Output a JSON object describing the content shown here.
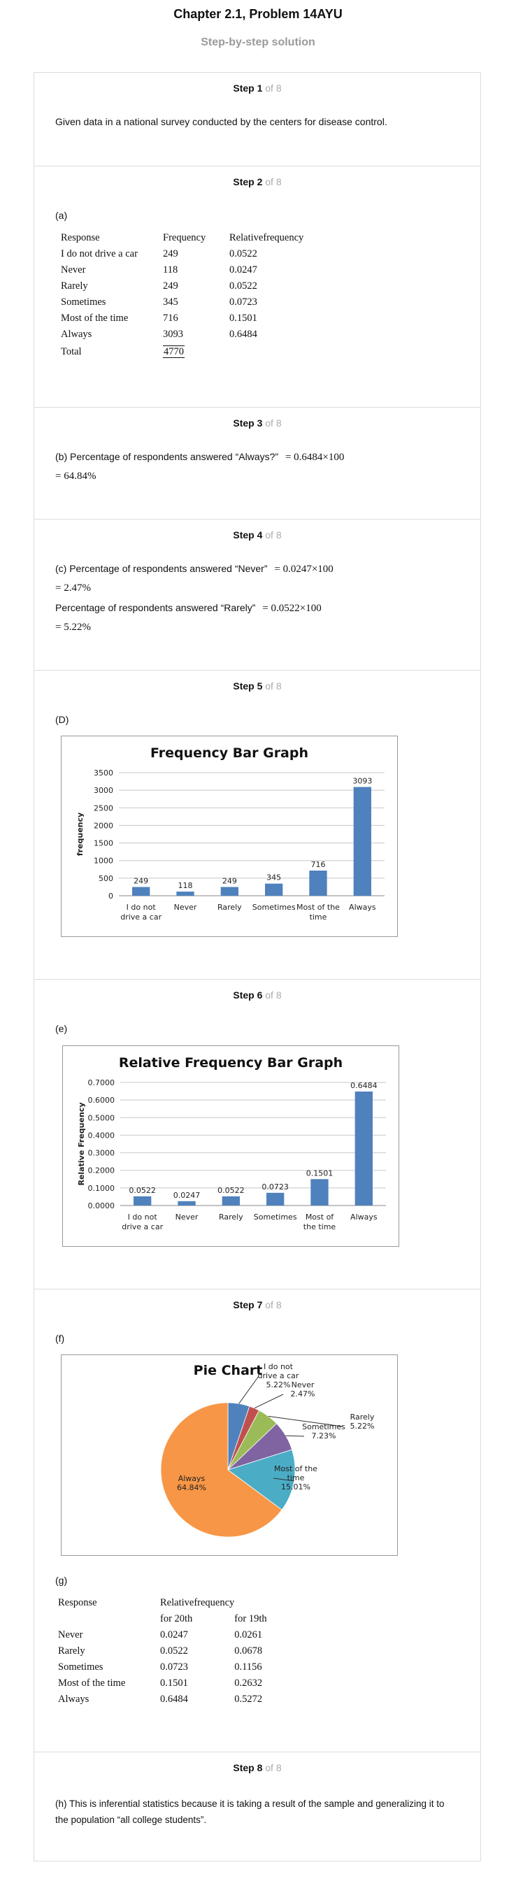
{
  "header": {
    "title": "Chapter 2.1, Problem 14AYU",
    "subtitle": "Step-by-step solution"
  },
  "steps": [
    {
      "num": "Step 1",
      "of": "of 8",
      "text": "Given data in a national survey conducted by the centers for disease control."
    },
    {
      "num": "Step 2",
      "of": "of 8",
      "part": "(a)"
    },
    {
      "num": "Step 3",
      "of": "of 8",
      "text": "(b) Percentage of respondents answered “Always?”",
      "math1": "= 0.6484×100",
      "math2": "= 64.84%"
    },
    {
      "num": "Step 4",
      "of": "of 8",
      "text1": "(c) Percentage of respondents answered “Never”",
      "math1": "= 0.0247×100",
      "math2": "= 2.47%",
      "text2": "Percentage of respondents answered “Rarely”",
      "math3": "= 0.0522×100",
      "math4": "= 5.22%"
    },
    {
      "num": "Step 5",
      "of": "of 8",
      "part": "(D)"
    },
    {
      "num": "Step 6",
      "of": "of 8",
      "part": "(e)"
    },
    {
      "num": "Step 7",
      "of": "of 8",
      "part": "(f)",
      "part2": "(g)"
    },
    {
      "num": "Step 8",
      "of": "of 8",
      "text": "(h) This is inferential statistics because it is taking a result of the sample and generalizing it to the population “all college students”."
    }
  ],
  "freq_table": {
    "headers": [
      "Response",
      "Frequency",
      "Relativefrequency"
    ],
    "rows": [
      [
        "I do not drive a car",
        "249",
        "0.0522"
      ],
      [
        "Never",
        "118",
        "0.0247"
      ],
      [
        "Rarely",
        "249",
        "0.0522"
      ],
      [
        "Sometimes",
        "345",
        "0.0723"
      ],
      [
        "Most of the time",
        "716",
        "0.1501"
      ],
      [
        "Always",
        "3093",
        "0.6484"
      ]
    ],
    "total_label": "Total",
    "total_value": "4770"
  },
  "comp_table": {
    "header1": [
      "Response",
      "Relativefrequency",
      ""
    ],
    "header2": [
      "",
      "for 20th",
      "for 19th"
    ],
    "rows": [
      [
        "Never",
        "0.0247",
        "0.0261"
      ],
      [
        "Rarely",
        "0.0522",
        "0.0678"
      ],
      [
        "Sometimes",
        "0.0723",
        "0.1156"
      ],
      [
        "Most of the time",
        "0.1501",
        "0.2632"
      ],
      [
        "Always",
        "0.6484",
        "0.5272"
      ]
    ]
  },
  "chart_data": [
    {
      "type": "bar",
      "title": "Frequency Bar Graph",
      "ylabel": "frequency",
      "xlabel": "",
      "categories": [
        [
          "I do not",
          "drive a car"
        ],
        [
          "Never"
        ],
        [
          "Rarely"
        ],
        [
          "Sometimes"
        ],
        [
          "Most of the",
          "time"
        ],
        [
          "Always"
        ]
      ],
      "values": [
        249,
        118,
        249,
        345,
        716,
        3093
      ],
      "data_labels": [
        "249",
        "118",
        "249",
        "345",
        "716",
        "3093"
      ],
      "ylim": [
        0,
        3500
      ],
      "ticks": [
        "0",
        "500",
        "1000",
        "1500",
        "2000",
        "2500",
        "3000",
        "3500"
      ],
      "bar_color": "#4f81bd",
      "grid": true
    },
    {
      "type": "bar",
      "title": "Relative Frequency Bar Graph",
      "ylabel": "Relative Frequency",
      "xlabel": "",
      "categories": [
        [
          "I do not",
          "drive a car"
        ],
        [
          "Never"
        ],
        [
          "Rarely"
        ],
        [
          "Sometimes"
        ],
        [
          "Most of",
          "the time"
        ],
        [
          "Always"
        ]
      ],
      "values": [
        0.0522,
        0.0247,
        0.0522,
        0.0723,
        0.1501,
        0.6484
      ],
      "data_labels": [
        "0.0522",
        "0.0247",
        "0.0522",
        "0.0723",
        "0.1501",
        "0.6484"
      ],
      "ylim": [
        0,
        0.7
      ],
      "ticks": [
        "0.0000",
        "0.1000",
        "0.2000",
        "0.3000",
        "0.4000",
        "0.5000",
        "0.6000",
        "0.7000"
      ],
      "bar_color": "#4f81bd",
      "grid": true
    },
    {
      "type": "pie",
      "title": "Pie Chart",
      "slices": [
        {
          "label": [
            "I do not",
            "drive a car",
            "5.22%"
          ],
          "value": 5.22,
          "color": "#4f81bd"
        },
        {
          "label": [
            "Never",
            "2.47%"
          ],
          "value": 2.47,
          "color": "#c0504d"
        },
        {
          "label": [
            "Rarely",
            "5.22%"
          ],
          "value": 5.22,
          "color": "#9bbb59"
        },
        {
          "label": [
            "Sometimes",
            "7.23%"
          ],
          "value": 7.23,
          "color": "#8064a2"
        },
        {
          "label": [
            "Most of the",
            "time",
            "15.01%"
          ],
          "value": 15.01,
          "color": "#4bacc6"
        },
        {
          "label": [
            "Always",
            "64.84%"
          ],
          "value": 64.84,
          "color": "#f79646"
        }
      ]
    }
  ]
}
